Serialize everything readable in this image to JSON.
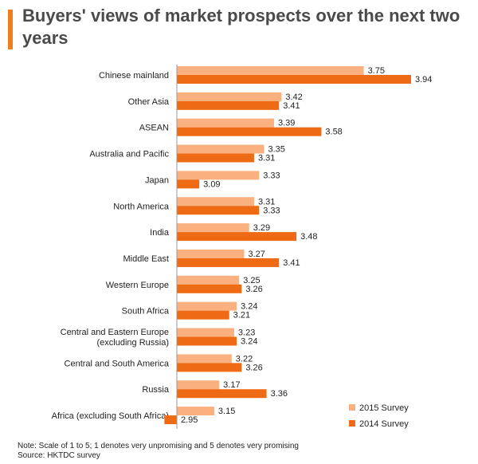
{
  "title": "Buyers' views of market prospects over the next two years",
  "colors": {
    "accent": "#f07d1e",
    "s2015": "#fab07f",
    "s2014": "#ee6a14",
    "title": "#4a4a4a"
  },
  "chart_data": {
    "type": "bar",
    "orientation": "horizontal",
    "title": "Buyers' views of market prospects over the next two years",
    "categories": [
      [
        "Chinese mainland"
      ],
      [
        "Other Asia"
      ],
      [
        "ASEAN"
      ],
      [
        "Australia and Pacific"
      ],
      [
        "Japan"
      ],
      [
        "North America"
      ],
      [
        "India"
      ],
      [
        "Middle East"
      ],
      [
        "Western Europe"
      ],
      [
        "South Africa"
      ],
      [
        "Central and Eastern Europe",
        "(excluding Russia)"
      ],
      [
        "Central and South America"
      ],
      [
        "Russia"
      ],
      [
        "Africa (excluding South Africa)"
      ]
    ],
    "series": [
      {
        "name": "2015 Survey",
        "color": "#fab07f",
        "values": [
          3.75,
          3.42,
          3.39,
          3.35,
          3.33,
          3.31,
          3.29,
          3.27,
          3.25,
          3.24,
          3.23,
          3.22,
          3.17,
          3.15
        ],
        "labels": [
          "3.75",
          "3.42",
          "3.39",
          "3.35",
          "3.33",
          "3.31",
          "3.29",
          "3.27",
          "3.25",
          "3.24",
          "3.23",
          "3.22",
          "3.17",
          "3.15"
        ]
      },
      {
        "name": "2014 Survey",
        "color": "#ee6a14",
        "values": [
          3.94,
          3.41,
          3.58,
          3.31,
          3.09,
          3.33,
          3.48,
          3.41,
          3.26,
          3.21,
          3.24,
          3.26,
          3.36,
          2.95
        ],
        "labels": [
          "3.94",
          "3.41",
          "3.58",
          "3.31",
          "3.09",
          "3.33",
          "3.48",
          "3.41",
          "3.26",
          "3.21",
          "3.24",
          "3.26",
          "3.36",
          "2.95"
        ]
      }
    ],
    "legend_position": "bottom-right",
    "grid": false
  },
  "notes": {
    "note": "Note: Scale of 1 to 5; 1 denotes very unpromising and 5 denotes very promising",
    "source": "Source: HKTDC survey"
  }
}
